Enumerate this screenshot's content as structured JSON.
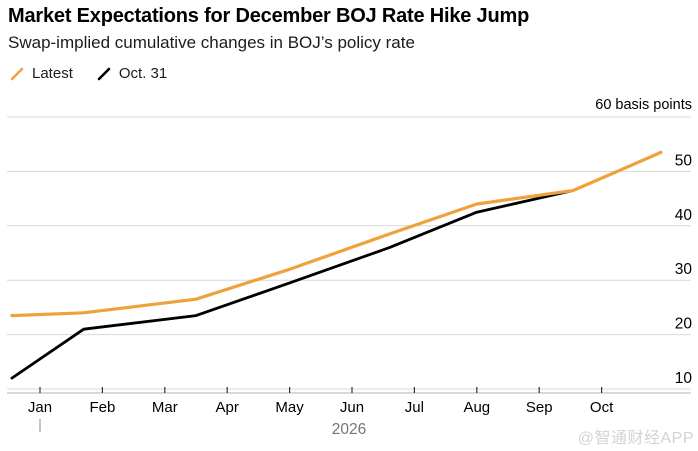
{
  "header": {
    "title": "Market Expectations for December BOJ Rate Hike Jump",
    "subtitle": "Swap-implied cumulative changes in BOJ’s policy rate"
  },
  "legend": {
    "items": [
      {
        "label": "Latest",
        "color": "#EFA13B"
      },
      {
        "label": "Oct. 31",
        "color": "#000000"
      }
    ]
  },
  "watermark": "@智通财经APP",
  "chart_data": {
    "type": "line",
    "title": "Market Expectations for December BOJ Rate Hike Jump",
    "subtitle": "Swap-implied cumulative changes in BOJ’s policy rate",
    "unit_label": "60 basis points",
    "grid": true,
    "legend_position": "top-left",
    "x_axis": {
      "tick_labels": [
        "Jan",
        "Feb",
        "Mar",
        "Apr",
        "May",
        "Jun",
        "Jul",
        "Aug",
        "Sep",
        "Oct"
      ],
      "year_label": "2026",
      "note": "x unit = months, 0 at Jan 2026 tick"
    },
    "y_axis": {
      "tick_labels": [
        10,
        20,
        30,
        40,
        50
      ],
      "range": [
        10,
        60
      ],
      "unit": "basis points"
    },
    "series": [
      {
        "name": "Latest",
        "color": "#EFA13B",
        "points": [
          [
            -0.45,
            23.5
          ],
          [
            0.7,
            24.0
          ],
          [
            2.5,
            26.5
          ],
          [
            4.0,
            32.0
          ],
          [
            5.6,
            38.5
          ],
          [
            7.0,
            44.0
          ],
          [
            8.55,
            46.5
          ],
          [
            9.95,
            53.5
          ]
        ]
      },
      {
        "name": "Oct. 31",
        "color": "#000000",
        "points": [
          [
            -0.45,
            12.0
          ],
          [
            0.7,
            21.0
          ],
          [
            2.5,
            23.5
          ],
          [
            4.0,
            29.5
          ],
          [
            5.6,
            36.0
          ],
          [
            7.0,
            42.5
          ],
          [
            8.55,
            46.5
          ]
        ]
      }
    ]
  }
}
